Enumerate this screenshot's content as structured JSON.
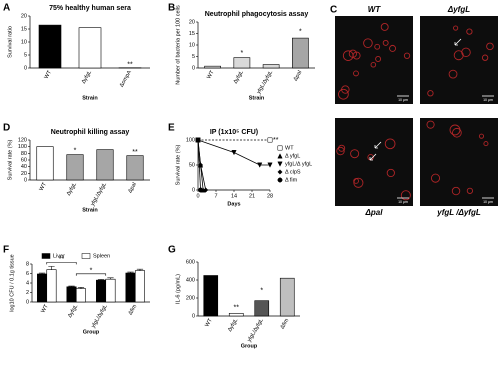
{
  "chart_data": [
    {
      "panel": "A",
      "type": "bar",
      "title": "75% healthy human sera",
      "y_label": "Survival ratio",
      "x_label": "Strain",
      "categories": [
        "WT",
        "ΔyfgL",
        "ΔompA"
      ],
      "values": [
        16.5,
        15.5,
        0.1
      ],
      "errors": [
        0.6,
        3,
        0.05
      ],
      "colors": [
        "#000000",
        "#ffffff",
        "#888888"
      ],
      "significance": [
        null,
        null,
        "**"
      ],
      "ylim": [
        0,
        20
      ],
      "yticks": [
        0,
        5,
        10,
        15,
        20
      ]
    },
    {
      "panel": "B",
      "type": "bar",
      "title": "Neutrophil phagocytosis assay",
      "y_label": "Number of bacteria per 100 cells",
      "x_label": "Strain",
      "categories": [
        "WT",
        "ΔyfgL",
        "yfgL/ΔyfgL",
        "Δpal"
      ],
      "values": [
        0.8,
        4.5,
        1.5,
        13
      ],
      "errors": [
        0.5,
        0.6,
        0.5,
        1.5
      ],
      "colors": [
        "#d9d9d9",
        "#d9d9d9",
        "#d9d9d9",
        "#a6a6a6"
      ],
      "significance": [
        null,
        "*",
        null,
        "*"
      ],
      "ylim": [
        0,
        20
      ],
      "yticks": [
        0,
        5,
        10,
        15,
        20
      ]
    },
    {
      "panel": "D",
      "type": "bar",
      "title": "Neutrophil killing assay",
      "y_label": "Survival rate (%)",
      "x_label": "Strain",
      "categories": [
        "WT",
        "ΔyfgL",
        "yfgL/ΔyfgL",
        "Δpal"
      ],
      "values": [
        100,
        76,
        91,
        73
      ],
      "errors": [
        1.5,
        3,
        5,
        2
      ],
      "colors": [
        "#ffffff",
        "#a6a6a6",
        "#a6a6a6",
        "#a6a6a6"
      ],
      "significance": [
        null,
        "*",
        null,
        "**"
      ],
      "ylim": [
        0,
        120
      ],
      "yticks": [
        0,
        20,
        40,
        60,
        80,
        100,
        120
      ]
    },
    {
      "panel": "E",
      "type": "line",
      "title": "IP (1x10⁵ CFU)",
      "y_label": "Survival rate (%)",
      "x_label": "Days",
      "series": [
        {
          "name": "WT",
          "color": "#000000",
          "marker": "square",
          "dashed": true,
          "x": [
            0,
            28
          ],
          "values": [
            100,
            100
          ]
        },
        {
          "name": "Δ yfgL",
          "color": "#000000",
          "marker": "triangle",
          "dashed": false,
          "x": [
            0,
            1,
            2
          ],
          "values": [
            100,
            50,
            0
          ]
        },
        {
          "name": "yfgL/Δ yfgL",
          "color": "#000000",
          "marker": "triangle-down",
          "dashed": false,
          "x": [
            0,
            14,
            24,
            28
          ],
          "values": [
            100,
            75,
            50,
            50
          ]
        },
        {
          "name": "Δ clpS",
          "color": "#000000",
          "marker": "diamond",
          "dashed": false,
          "x": [
            0,
            1,
            3
          ],
          "values": [
            100,
            50,
            0
          ]
        },
        {
          "name": "Δ fim",
          "color": "#000000",
          "marker": "circle",
          "dashed": false,
          "x": [
            0,
            1
          ],
          "values": [
            100,
            0
          ]
        }
      ],
      "annotation": "**",
      "xlim": [
        0,
        28
      ],
      "xticks": [
        0,
        7,
        14,
        21,
        28
      ],
      "ylim": [
        0,
        100
      ],
      "yticks": [
        0,
        50,
        100
      ]
    },
    {
      "panel": "F",
      "type": "grouped_bar",
      "y_label": "log10 CFU / 0.1g tissue",
      "x_label": "Group",
      "categories": [
        "WT",
        "ΔyfgL",
        "yfgL/ΔyfgL",
        "Δfim"
      ],
      "series": [
        {
          "name": "Liver",
          "color": "#000000",
          "values": [
            5.9,
            3.2,
            4.6,
            6.1
          ],
          "errors": [
            0.2,
            0.15,
            0.15,
            0.2
          ]
        },
        {
          "name": "Spleen",
          "color": "#ffffff",
          "values": [
            6.8,
            2.8,
            4.8,
            6.6
          ],
          "errors": [
            0.7,
            0.3,
            0.3,
            0.3
          ]
        }
      ],
      "brackets": [
        {
          "label": "**",
          "between": [
            "WT",
            "ΔyfgL"
          ]
        },
        {
          "label": "*",
          "between": [
            "ΔyfgL",
            "yfgL/ΔyfgL"
          ]
        }
      ],
      "ylim": [
        0,
        8
      ],
      "yticks": [
        0,
        2,
        4,
        6,
        8
      ]
    },
    {
      "panel": "G",
      "type": "bar",
      "y_label": "IL-6 (pg/mL)",
      "x_label": "Group",
      "categories": [
        "WT",
        "ΔyfgL",
        "yfgL/ΔyfgL",
        "Δfim"
      ],
      "values": [
        450,
        30,
        170,
        420
      ],
      "errors": [
        70,
        30,
        80,
        100
      ],
      "colors": [
        "#000000",
        "#ffffff",
        "#555555",
        "#bfbfbf"
      ],
      "significance": [
        null,
        "**",
        "*",
        null
      ],
      "ylim": [
        0,
        600
      ],
      "yticks": [
        0,
        200,
        400,
        600
      ]
    }
  ],
  "image_panel": {
    "panel": "C",
    "labels": [
      "WT",
      "ΔyfgL",
      "Δpal",
      "yfgL /ΔyfgL"
    ],
    "scale": "10 μm"
  }
}
